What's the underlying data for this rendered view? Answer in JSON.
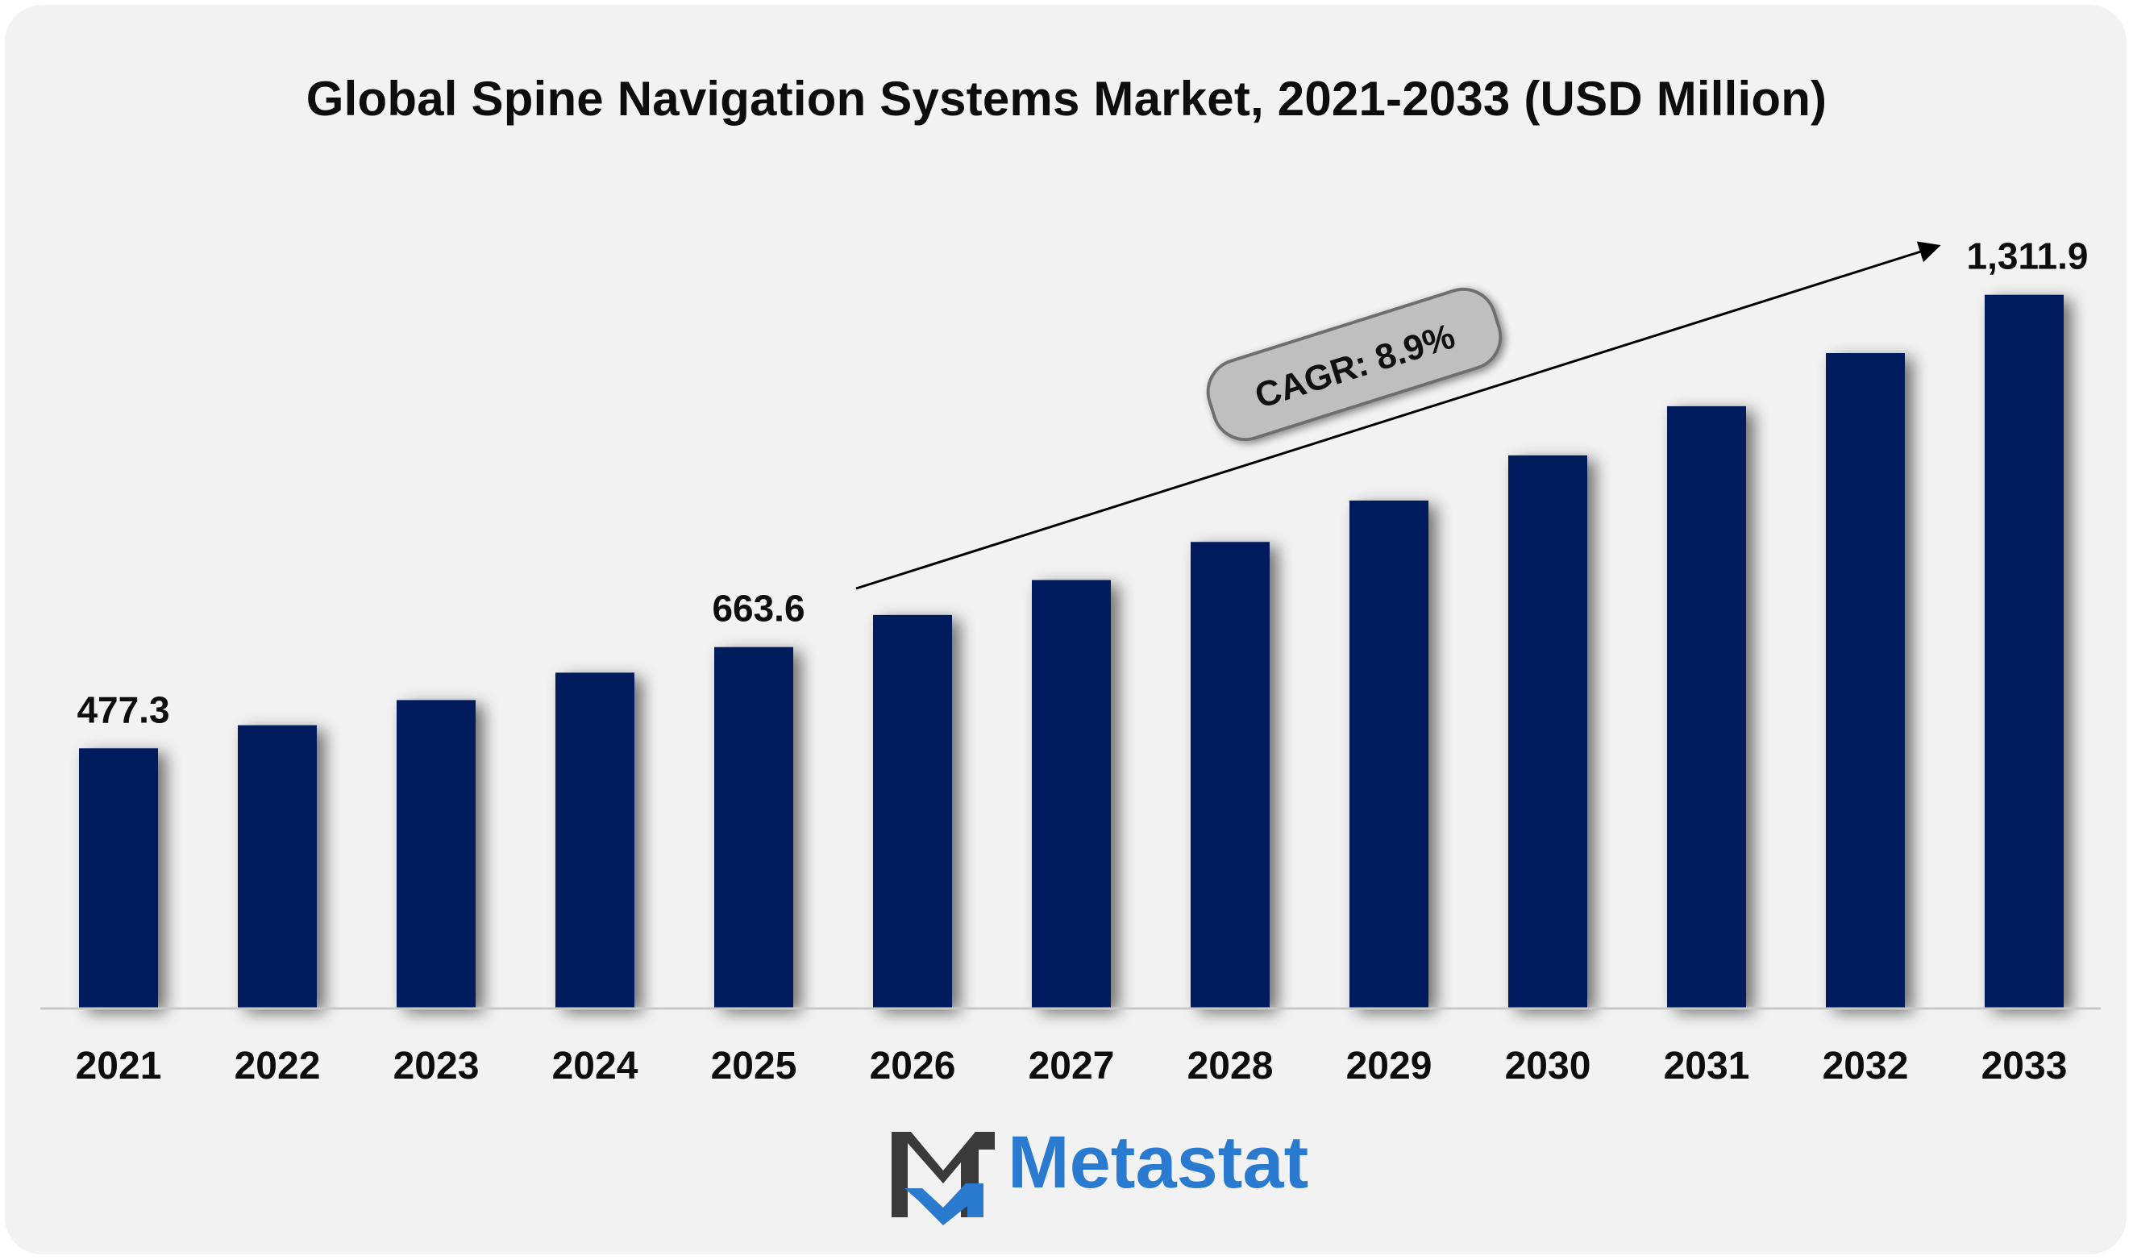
{
  "chart_data": {
    "type": "bar",
    "title": "Global Spine Navigation Systems Market, 2021-2033 (USD Million)",
    "categories": [
      "2021",
      "2022",
      "2023",
      "2024",
      "2025",
      "2026",
      "2027",
      "2028",
      "2029",
      "2030",
      "2031",
      "2032",
      "2033"
    ],
    "values": [
      477.3,
      519.8,
      566.1,
      616.5,
      663.6,
      722.7,
      787.0,
      857.1,
      933.3,
      1016.4,
      1106.9,
      1204.6,
      1311.9
    ],
    "data_labels": [
      {
        "category": "2021",
        "text": "477.3"
      },
      {
        "category": "2025",
        "text": "663.6"
      },
      {
        "category": "2033",
        "text": "1,311.9"
      }
    ],
    "annotation": "CAGR: 8.9%",
    "bar_color": "#031e5c",
    "ylim": [
      0,
      1350
    ],
    "grid": false,
    "legend": "none"
  },
  "logo": {
    "text": "Metastat",
    "text_color": "#2a7bd0",
    "mark_colors": [
      "#3a3a3a",
      "#2a7bd0"
    ]
  },
  "colors": {
    "background": "#f2f2f2",
    "bar": "#031e5c",
    "text": "#0d0d0d",
    "cagr_box": "#bfbfbf"
  }
}
